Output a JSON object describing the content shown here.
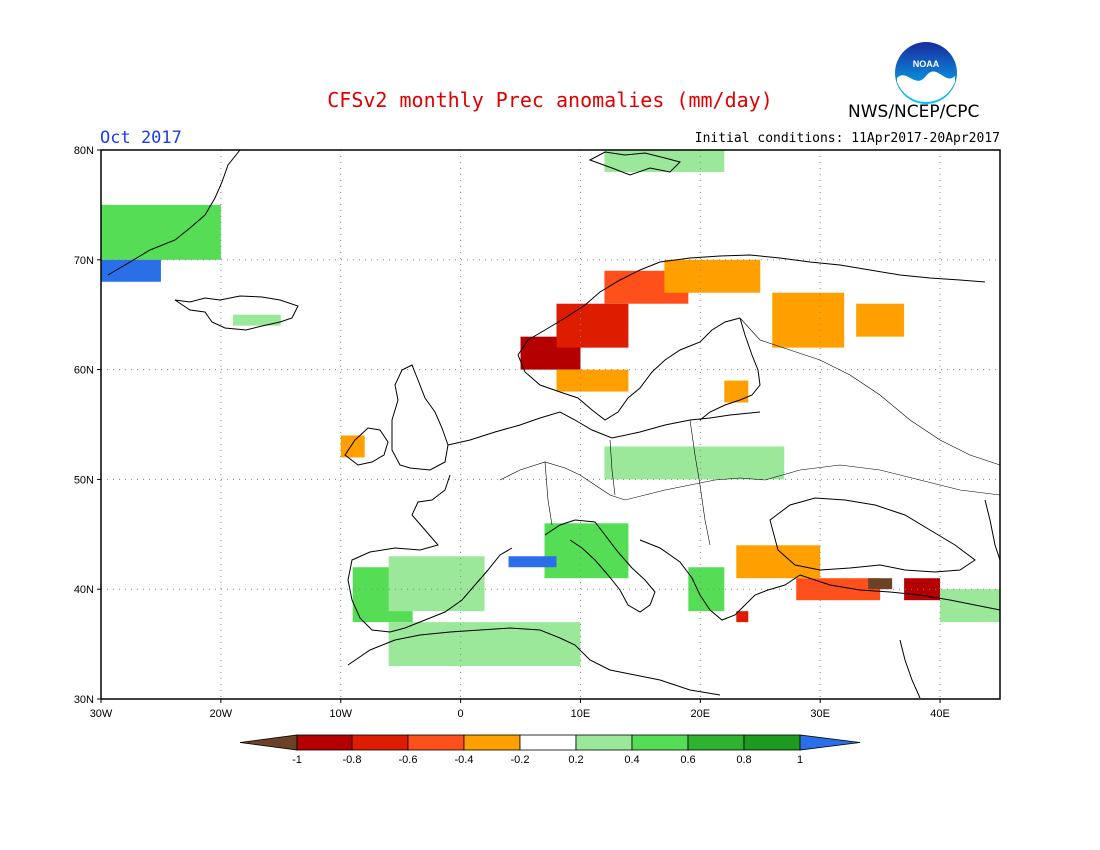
{
  "header": {
    "title": "CFSv2 monthly Prec anomalies (mm/day)",
    "org": "NWS/NCEP/CPC",
    "logo_text": "NOAA",
    "month": "Oct 2017",
    "initial_conditions": "Initial conditions: 11Apr2017-20Apr2017"
  },
  "map": {
    "lat_labels": [
      "80N",
      "70N",
      "60N",
      "50N",
      "40N",
      "30N"
    ],
    "lon_labels": [
      "30W",
      "20W",
      "10W",
      "0",
      "10E",
      "20E",
      "30E",
      "40E"
    ],
    "lat_values": [
      80,
      70,
      60,
      50,
      40,
      30
    ],
    "lon_values": [
      -30,
      -20,
      -10,
      0,
      10,
      20,
      30,
      40
    ],
    "extent": {
      "lon_min": -30,
      "lon_max": 45,
      "lat_min": 30,
      "lat_max": 80
    }
  },
  "legend": {
    "ticks": [
      "-1",
      "-0.8",
      "-0.6",
      "-0.4",
      "-0.2",
      "0.2",
      "0.4",
      "0.6",
      "0.8",
      "1"
    ],
    "colors": {
      "lt_-1": "#6b4226",
      "-1_-0.8": "#b40000",
      "-0.8_-0.6": "#dd1c00",
      "-0.6_-0.4": "#ff4f1a",
      "-0.4_-0.2": "#ffa000",
      "-0.2_0.2": "#ffffff",
      "0.2_0.4": "#9be89b",
      "0.4_0.6": "#55dd55",
      "0.6_0.8": "#2fb22f",
      "0.8_1": "#1e9a1e",
      "gt_1": "#2a6ee8"
    }
  },
  "chart_data": {
    "type": "heatmap",
    "title": "CFSv2 monthly Prec anomalies (mm/day)",
    "units": "mm/day",
    "cell_size_deg": 1,
    "regions": [
      {
        "name": "Norway west coast",
        "lon": [
          5,
          10
        ],
        "lat": [
          60,
          63
        ],
        "value": -0.9
      },
      {
        "name": "Norway coast mid",
        "lon": [
          8,
          14
        ],
        "lat": [
          62,
          66
        ],
        "value": -0.7
      },
      {
        "name": "Norway north coast",
        "lon": [
          12,
          19
        ],
        "lat": [
          66,
          69
        ],
        "value": -0.5
      },
      {
        "name": "Northern Scandinavia",
        "lon": [
          17,
          25
        ],
        "lat": [
          67,
          70
        ],
        "value": -0.3
      },
      {
        "name": "Finland east",
        "lon": [
          26,
          32
        ],
        "lat": [
          62,
          67
        ],
        "value": -0.3
      },
      {
        "name": "Russia northwest",
        "lon": [
          33,
          37
        ],
        "lat": [
          63,
          66
        ],
        "value": -0.3
      },
      {
        "name": "Baltic",
        "lon": [
          22,
          24
        ],
        "lat": [
          57,
          59
        ],
        "value": -0.3
      },
      {
        "name": "Southern Sweden",
        "lon": [
          8,
          14
        ],
        "lat": [
          58,
          60
        ],
        "value": -0.3
      },
      {
        "name": "Turkey north",
        "lon": [
          28,
          35
        ],
        "lat": [
          39,
          41
        ],
        "value": -0.6
      },
      {
        "name": "Turkey northeast",
        "lon": [
          34,
          36
        ],
        "lat": [
          40,
          41
        ],
        "value": -1.1
      },
      {
        "name": "Turkey east",
        "lon": [
          37,
          40
        ],
        "lat": [
          39,
          41
        ],
        "value": -0.9
      },
      {
        "name": "Bulgaria/Romania",
        "lon": [
          23,
          30
        ],
        "lat": [
          41,
          44
        ],
        "value": -0.3
      },
      {
        "name": "Greece south",
        "lon": [
          23,
          24
        ],
        "lat": [
          37,
          38
        ],
        "value": -0.7
      },
      {
        "name": "Ireland",
        "lon": [
          -10,
          -8
        ],
        "lat": [
          52,
          54
        ],
        "value": -0.3
      },
      {
        "name": "Central Europe",
        "lon": [
          12,
          27
        ],
        "lat": [
          50,
          53
        ],
        "value": 0.3
      },
      {
        "name": "Italy",
        "lon": [
          7,
          14
        ],
        "lat": [
          41,
          46
        ],
        "value": 0.5
      },
      {
        "name": "Iberia west",
        "lon": [
          -9,
          -4
        ],
        "lat": [
          37,
          42
        ],
        "value": 0.5
      },
      {
        "name": "Iberia central",
        "lon": [
          -6,
          2
        ],
        "lat": [
          38,
          43
        ],
        "value": 0.3
      },
      {
        "name": "North Africa",
        "lon": [
          -6,
          10
        ],
        "lat": [
          33,
          37
        ],
        "value": 0.3
      },
      {
        "name": "Gulf of Lion",
        "lon": [
          4,
          8
        ],
        "lat": [
          42,
          43
        ],
        "value": 1.1
      },
      {
        "name": "Greenland east",
        "lon": [
          -30,
          -20
        ],
        "lat": [
          70,
          75
        ],
        "value": 0.5
      },
      {
        "name": "Greenland southeast tip",
        "lon": [
          -30,
          -25
        ],
        "lat": [
          68,
          70
        ],
        "value": 1.2
      },
      {
        "name": "Iceland",
        "lon": [
          -19,
          -15
        ],
        "lat": [
          64,
          65
        ],
        "value": 0.3
      },
      {
        "name": "Svalbard",
        "lon": [
          12,
          22
        ],
        "lat": [
          78,
          80
        ],
        "value": 0.4
      },
      {
        "name": "Balkans",
        "lon": [
          19,
          22
        ],
        "lat": [
          38,
          42
        ],
        "value": 0.5
      },
      {
        "name": "Turkey west",
        "lon": [
          40,
          45
        ],
        "lat": [
          37,
          40
        ],
        "value": 0.4
      }
    ]
  }
}
